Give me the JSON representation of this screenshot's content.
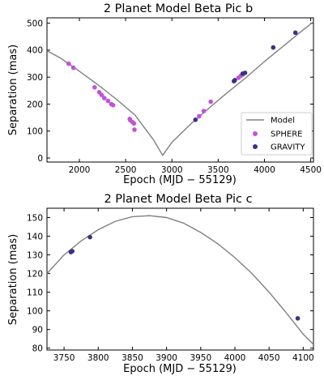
{
  "chart_data": [
    {
      "type": "scatter",
      "title": "2 Planet Model Beta Pic b",
      "xlabel": "Epoch (MJD − 55129)",
      "ylabel": "Separation (mas)",
      "xlim": [
        1650,
        4530
      ],
      "ylim": [
        -15,
        520
      ],
      "xticks": [
        2000,
        2500,
        3000,
        3500,
        4000,
        4500
      ],
      "yticks": [
        0,
        100,
        200,
        300,
        400,
        500
      ],
      "legend": {
        "placement": "lower-right",
        "entries": [
          {
            "label": "Model",
            "kind": "line",
            "color": "#808080"
          },
          {
            "label": "SPHERE",
            "kind": "marker",
            "color": "#c252d8"
          },
          {
            "label": "GRAVITY",
            "kind": "marker",
            "color": "#3c2f86"
          }
        ]
      },
      "series": [
        {
          "name": "Model",
          "kind": "line",
          "color": "#808080",
          "x": [
            1650,
            1800,
            2000,
            2200,
            2400,
            2600,
            2800,
            2900,
            3000,
            3200,
            3400,
            3600,
            3800,
            4000,
            4200,
            4400,
            4530
          ],
          "y": [
            398,
            370,
            322,
            272,
            218,
            160,
            68,
            10,
            58,
            125,
            185,
            243,
            298,
            358,
            414,
            470,
            505
          ]
        },
        {
          "name": "SPHERE",
          "kind": "scatter",
          "color": "#c252d8",
          "x": [
            1885,
            1935,
            2165,
            2215,
            2240,
            2270,
            2310,
            2345,
            2365,
            2550,
            2575,
            2590,
            2595,
            2545,
            3295,
            3345,
            3420,
            3720,
            3745,
            3765
          ],
          "y": [
            350,
            335,
            262,
            244,
            234,
            222,
            212,
            200,
            196,
            140,
            133,
            128,
            105,
            145,
            155,
            174,
            209,
            298,
            305,
            310
          ]
        },
        {
          "name": "GRAVITY",
          "kind": "scatter",
          "color": "#3c2f86",
          "x": [
            3255,
            3670,
            3680,
            3765,
            3790,
            4095,
            4335
          ],
          "y": [
            142,
            285,
            289,
            313,
            316,
            410,
            465
          ]
        }
      ]
    },
    {
      "type": "line",
      "title": "2 Planet Model Beta Pic c",
      "xlabel": "Epoch (MJD − 55129)",
      "ylabel": "Separation (mas)",
      "xlim": [
        3725,
        4115
      ],
      "ylim": [
        79,
        155
      ],
      "xticks": [
        3750,
        3800,
        3850,
        3900,
        3950,
        4000,
        4050,
        4100
      ],
      "yticks": [
        80,
        90,
        100,
        110,
        120,
        130,
        140,
        150
      ],
      "series": [
        {
          "name": "Model",
          "kind": "line",
          "color": "#808080",
          "x": [
            3725,
            3750,
            3775,
            3800,
            3825,
            3850,
            3875,
            3900,
            3925,
            3950,
            3975,
            4000,
            4025,
            4050,
            4075,
            4100,
            4115
          ],
          "y": [
            120,
            130,
            137.5,
            143.5,
            148,
            150.5,
            151,
            150,
            147,
            142,
            136,
            128.5,
            120,
            110,
            99,
            87.5,
            82
          ]
        },
        {
          "name": "GRAVITY",
          "kind": "scatter",
          "color": "#3c2f86",
          "x": [
            3760,
            3762,
            3788,
            4092
          ],
          "y": [
            131.5,
            132,
            139.5,
            96
          ]
        }
      ]
    }
  ]
}
